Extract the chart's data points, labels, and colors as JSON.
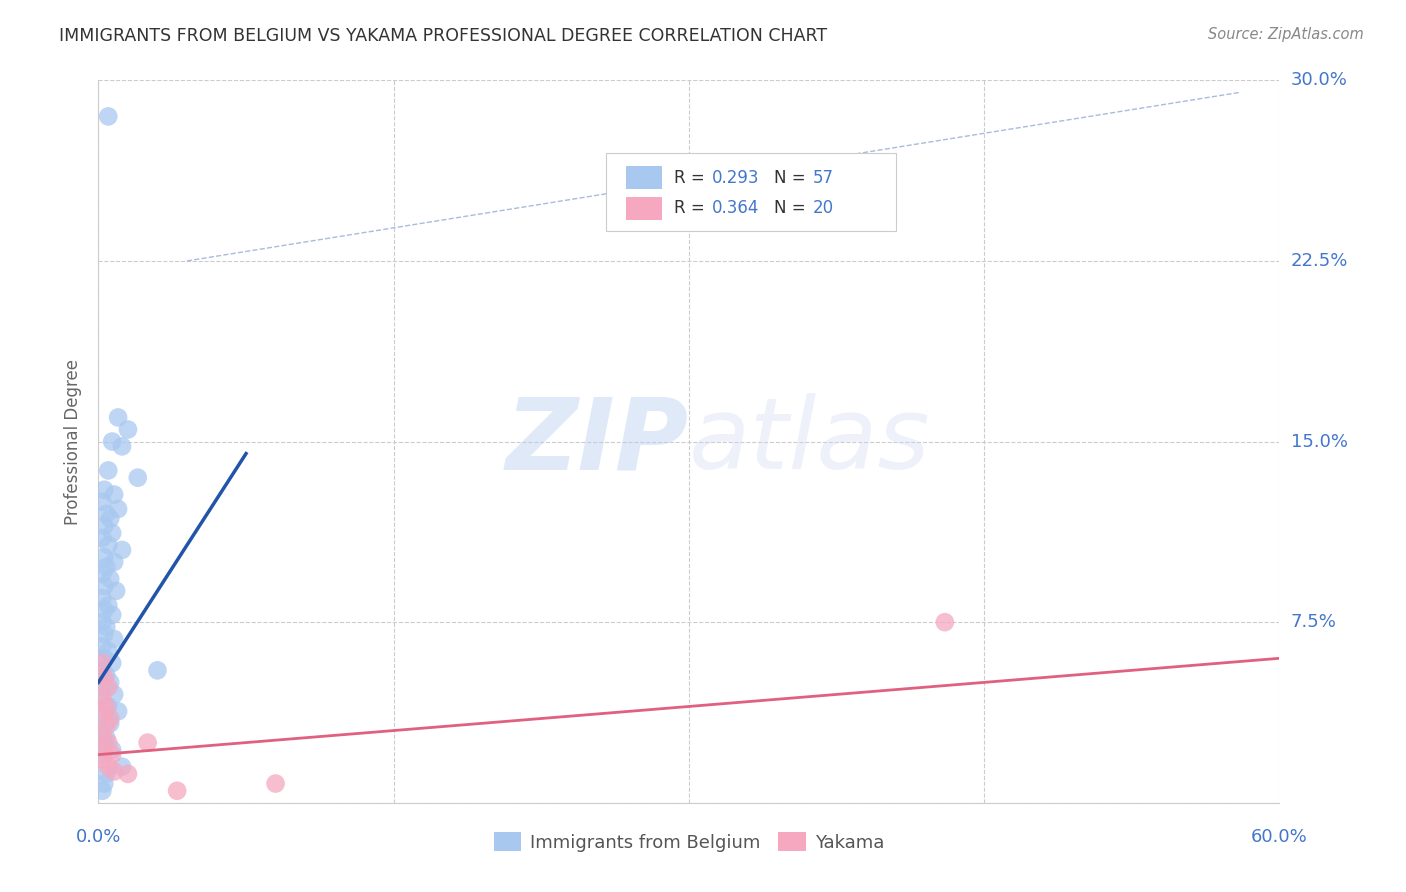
{
  "title": "IMMIGRANTS FROM BELGIUM VS YAKAMA PROFESSIONAL DEGREE CORRELATION CHART",
  "source": "Source: ZipAtlas.com",
  "ylabel": "Professional Degree",
  "xlim": [
    0.0,
    0.6
  ],
  "ylim": [
    0.0,
    0.3
  ],
  "grid_color": "#cccccc",
  "background_color": "#ffffff",
  "watermark_zip": "ZIP",
  "watermark_atlas": "atlas",
  "series1_color": "#a8c8f0",
  "series2_color": "#f5a8c0",
  "series1_line_color": "#2255aa",
  "series2_line_color": "#e06080",
  "dashed_line_color": "#aabbdd",
  "title_color": "#333333",
  "axis_label_color": "#4477cc",
  "legend_box_color": "#eeeeee",
  "series1_points": [
    [
      0.005,
      0.285
    ],
    [
      0.01,
      0.16
    ],
    [
      0.015,
      0.155
    ],
    [
      0.007,
      0.15
    ],
    [
      0.012,
      0.148
    ],
    [
      0.005,
      0.138
    ],
    [
      0.02,
      0.135
    ],
    [
      0.003,
      0.13
    ],
    [
      0.008,
      0.128
    ],
    [
      0.002,
      0.125
    ],
    [
      0.01,
      0.122
    ],
    [
      0.004,
      0.12
    ],
    [
      0.006,
      0.118
    ],
    [
      0.003,
      0.115
    ],
    [
      0.007,
      0.112
    ],
    [
      0.002,
      0.11
    ],
    [
      0.005,
      0.107
    ],
    [
      0.012,
      0.105
    ],
    [
      0.003,
      0.102
    ],
    [
      0.008,
      0.1
    ],
    [
      0.004,
      0.098
    ],
    [
      0.002,
      0.095
    ],
    [
      0.006,
      0.093
    ],
    [
      0.003,
      0.09
    ],
    [
      0.009,
      0.088
    ],
    [
      0.002,
      0.085
    ],
    [
      0.005,
      0.082
    ],
    [
      0.003,
      0.08
    ],
    [
      0.007,
      0.078
    ],
    [
      0.002,
      0.075
    ],
    [
      0.004,
      0.073
    ],
    [
      0.003,
      0.07
    ],
    [
      0.008,
      0.068
    ],
    [
      0.002,
      0.065
    ],
    [
      0.005,
      0.063
    ],
    [
      0.003,
      0.06
    ],
    [
      0.007,
      0.058
    ],
    [
      0.002,
      0.055
    ],
    [
      0.004,
      0.053
    ],
    [
      0.006,
      0.05
    ],
    [
      0.003,
      0.048
    ],
    [
      0.008,
      0.045
    ],
    [
      0.002,
      0.042
    ],
    [
      0.005,
      0.04
    ],
    [
      0.01,
      0.038
    ],
    [
      0.003,
      0.035
    ],
    [
      0.006,
      0.033
    ],
    [
      0.002,
      0.03
    ],
    [
      0.004,
      0.027
    ],
    [
      0.003,
      0.025
    ],
    [
      0.007,
      0.022
    ],
    [
      0.002,
      0.02
    ],
    [
      0.012,
      0.015
    ],
    [
      0.004,
      0.012
    ],
    [
      0.003,
      0.008
    ],
    [
      0.03,
      0.055
    ],
    [
      0.002,
      0.005
    ]
  ],
  "series2_points": [
    [
      0.002,
      0.058
    ],
    [
      0.003,
      0.052
    ],
    [
      0.005,
      0.048
    ],
    [
      0.002,
      0.044
    ],
    [
      0.004,
      0.04
    ],
    [
      0.003,
      0.038
    ],
    [
      0.006,
      0.035
    ],
    [
      0.004,
      0.032
    ],
    [
      0.002,
      0.028
    ],
    [
      0.005,
      0.025
    ],
    [
      0.003,
      0.022
    ],
    [
      0.007,
      0.02
    ],
    [
      0.002,
      0.018
    ],
    [
      0.005,
      0.015
    ],
    [
      0.008,
      0.013
    ],
    [
      0.015,
      0.012
    ],
    [
      0.025,
      0.025
    ],
    [
      0.04,
      0.005
    ],
    [
      0.09,
      0.008
    ],
    [
      0.43,
      0.075
    ]
  ],
  "blue_trendline": [
    [
      0.0,
      0.05
    ],
    [
      0.075,
      0.145
    ]
  ],
  "pink_trendline": [
    [
      0.0,
      0.02
    ],
    [
      0.6,
      0.06
    ]
  ],
  "dashed_trendline": [
    [
      0.045,
      0.225
    ],
    [
      0.58,
      0.295
    ]
  ]
}
